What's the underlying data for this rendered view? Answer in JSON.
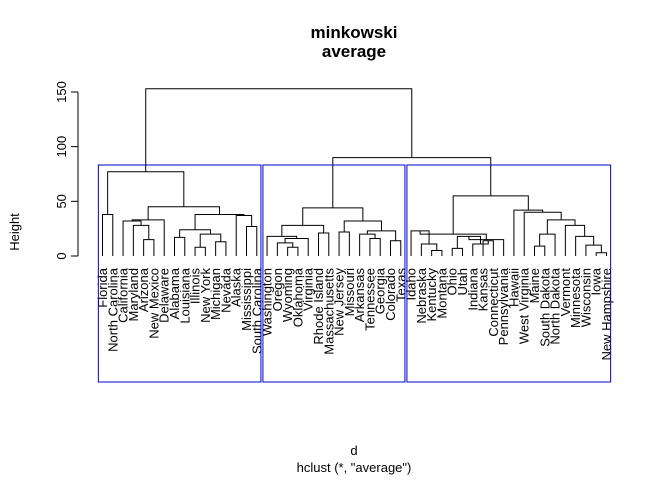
{
  "chart_data": {
    "type": "dendrogram",
    "title_line1": "minkowski",
    "title_line2": "average",
    "xlabel": "d",
    "sublabel": "hclust (*, \"average\")",
    "ylabel": "Height",
    "ylim": [
      0,
      160
    ],
    "yticks": [
      0,
      50,
      100,
      150
    ],
    "rect_color": "#0000cc",
    "leaves": [
      "Florida",
      "North Carolina",
      "California",
      "Maryland",
      "Arizona",
      "New Mexico",
      "Delaware",
      "Alabama",
      "Louisiana",
      "Illinois",
      "New York",
      "Michigan",
      "Nevada",
      "Alaska",
      "Mississippi",
      "South Carolina",
      "Washington",
      "Oregon",
      "Wyoming",
      "Oklahoma",
      "Virginia",
      "Rhode Island",
      "Massachusetts",
      "New Jersey",
      "Missouri",
      "Arkansas",
      "Tennessee",
      "Georgia",
      "Colorado",
      "Texas",
      "Idaho",
      "Nebraska",
      "Kentucky",
      "Montana",
      "Ohio",
      "Utah",
      "Indiana",
      "Kansas",
      "Connecticut",
      "Pennsylvania",
      "Hawaii",
      "West Virginia",
      "Maine",
      "South Dakota",
      "North Dakota",
      "Vermont",
      "Minnesota",
      "Wisconsin",
      "Iowa",
      "New Hampshire"
    ],
    "merges": [
      [
        -15,
        -16,
        27
      ],
      [
        -5,
        -6,
        15
      ],
      [
        -10,
        -11,
        8
      ],
      [
        -12,
        -13,
        13
      ],
      [
        -8,
        -9,
        17
      ],
      [
        -1,
        -2,
        38
      ],
      [
        -4,
        2,
        28
      ],
      [
        3,
        4,
        20
      ],
      [
        1,
        -14,
        37
      ],
      [
        -3,
        7,
        32
      ],
      [
        5,
        8,
        24
      ],
      [
        10,
        -7,
        33
      ],
      [
        11,
        9,
        38
      ],
      [
        12,
        13,
        45
      ],
      [
        6,
        14,
        77
      ],
      [
        -19,
        -20,
        8
      ],
      [
        -18,
        16,
        12
      ],
      [
        17,
        -21,
        16
      ],
      [
        -17,
        18,
        18
      ],
      [
        -22,
        -23,
        21
      ],
      [
        19,
        20,
        28
      ],
      [
        -27,
        -28,
        16
      ],
      [
        -26,
        22,
        20
      ],
      [
        -29,
        -30,
        14
      ],
      [
        23,
        24,
        23
      ],
      [
        -24,
        -25,
        22
      ],
      [
        26,
        25,
        32
      ],
      [
        21,
        27,
        44
      ],
      [
        -33,
        -34,
        5
      ],
      [
        -32,
        29,
        11
      ],
      [
        -31,
        30,
        23
      ],
      [
        -35,
        -36,
        7
      ],
      [
        -38,
        -39,
        14
      ],
      [
        -37,
        33,
        11
      ],
      [
        32,
        34,
        18
      ],
      [
        35,
        -40,
        15
      ],
      [
        31,
        36,
        20
      ],
      [
        -43,
        -44,
        9
      ],
      [
        38,
        -45,
        20
      ],
      [
        -49,
        -50,
        3
      ],
      [
        -48,
        40,
        10
      ],
      [
        -47,
        41,
        18
      ],
      [
        -46,
        42,
        28
      ],
      [
        43,
        39,
        33
      ],
      [
        -42,
        44,
        40
      ],
      [
        -41,
        45,
        42
      ],
      [
        37,
        46,
        55
      ],
      [
        28,
        47,
        90
      ],
      [
        15,
        48,
        153
      ]
    ],
    "clusters": [
      [
        1,
        16
      ],
      [
        17,
        30
      ],
      [
        31,
        50
      ]
    ]
  }
}
